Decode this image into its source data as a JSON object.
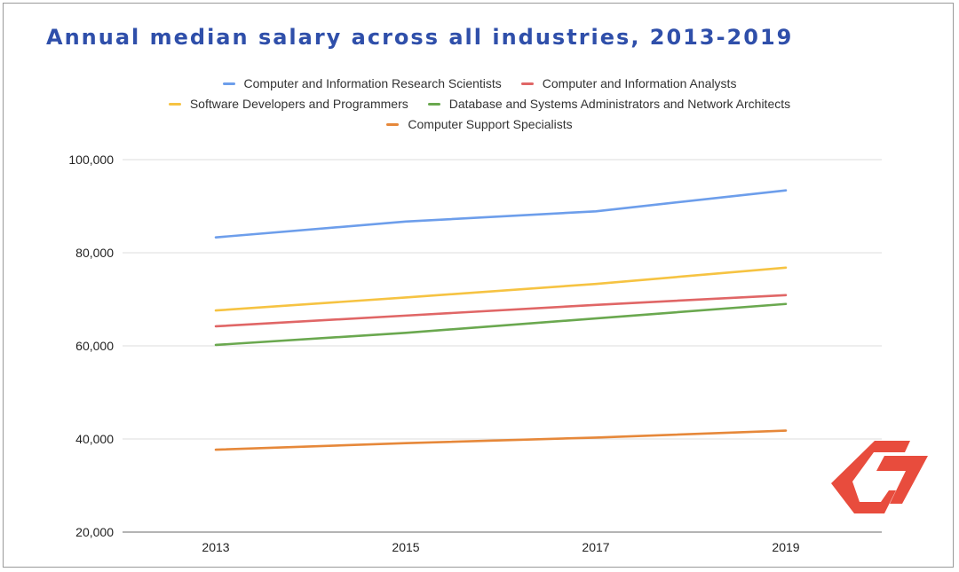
{
  "chart_data": {
    "type": "line",
    "title": "Annual median salary across all industries, 2013-2019",
    "xlabel": "",
    "ylabel": "",
    "x": [
      "2013",
      "2015",
      "2017",
      "2019"
    ],
    "ylim": [
      20000,
      100000
    ],
    "yticks": [
      "20,000",
      "40,000",
      "60,000",
      "80,000",
      "100,000"
    ],
    "grid": true,
    "legend_position": "top",
    "series": [
      {
        "name": "Computer and Information Research Scientists",
        "color": "#6d9eeb",
        "values": [
          83300,
          86700,
          88900,
          93400
        ]
      },
      {
        "name": "Computer and Information Analysts",
        "color": "#e06666",
        "values": [
          64200,
          66500,
          68800,
          70900
        ]
      },
      {
        "name": "Software Developers and Programmers",
        "color": "#f6c342",
        "values": [
          67600,
          70400,
          73300,
          76800
        ]
      },
      {
        "name": "Database and Systems Administrators and Network Architects",
        "color": "#6aa84f",
        "values": [
          60200,
          62800,
          65900,
          69000
        ]
      },
      {
        "name": "Computer Support Specialists",
        "color": "#e6883a",
        "values": [
          37700,
          39100,
          40300,
          41800
        ]
      }
    ]
  },
  "logo": {
    "name": "brand-logo",
    "color": "#e84c3d"
  }
}
